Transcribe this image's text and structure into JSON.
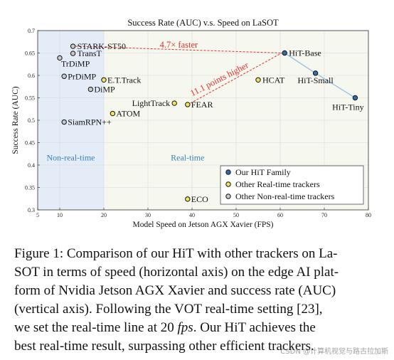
{
  "chart_data": {
    "type": "scatter",
    "title": "Success Rate (AUC) v.s. Speed on LaSOT",
    "xlabel": "Model Speed on Jetson AGX Xavier (FPS)",
    "ylabel": "Success Rate (AUC)",
    "xlim": [
      5,
      80
    ],
    "ylim": [
      0.3,
      0.7
    ],
    "xticks": [
      5,
      10,
      20,
      30,
      40,
      50,
      60,
      70,
      80
    ],
    "yticks": [
      0.3,
      0.35,
      0.4,
      0.45,
      0.5,
      0.55,
      0.6,
      0.65,
      0.7
    ],
    "grid": true,
    "legend_position": "bottom-right",
    "regions": [
      {
        "label": "Non-real-time",
        "x_range": [
          5,
          20
        ],
        "color": "#e3ecf7"
      },
      {
        "label": "Real-time",
        "x_range": [
          20,
          80
        ],
        "color": "#f6f8ef"
      }
    ],
    "series": [
      {
        "name": "Our HiT Family",
        "color": "#2f6fa8",
        "points": [
          {
            "label": "HiT-Base",
            "x": 61,
            "y": 0.65
          },
          {
            "label": "HiT-Small",
            "x": 68,
            "y": 0.605
          },
          {
            "label": "HiT-Tiny",
            "x": 77,
            "y": 0.55
          }
        ]
      },
      {
        "name": "Other Real-time trackers",
        "color": "#f2e45a",
        "points": [
          {
            "label": "HCAT",
            "x": 55,
            "y": 0.59
          },
          {
            "label": "LightTrack",
            "x": 36,
            "y": 0.538
          },
          {
            "label": "FEAR",
            "x": 39,
            "y": 0.535
          },
          {
            "label": "ATOM",
            "x": 22,
            "y": 0.515
          },
          {
            "label": "ECO",
            "x": 39,
            "y": 0.324
          },
          {
            "label": "E.T.Track",
            "x": 20,
            "y": 0.59
          }
        ]
      },
      {
        "name": "Other Non-real-time trackers",
        "color": "#c9c9c9",
        "points": [
          {
            "label": "STARK-ST50",
            "x": 13,
            "y": 0.665
          },
          {
            "label": "TransT",
            "x": 13,
            "y": 0.649
          },
          {
            "label": "TrDiMP",
            "x": 10,
            "y": 0.639
          },
          {
            "label": "PrDiMP",
            "x": 11,
            "y": 0.598
          },
          {
            "label": "DiMP",
            "x": 17,
            "y": 0.569
          },
          {
            "label": "SiamRPN++",
            "x": 11,
            "y": 0.496
          }
        ]
      }
    ],
    "annotations": [
      {
        "text": "4.7× faster",
        "from": {
          "x": 13,
          "y": 0.665
        },
        "to": {
          "x": 61,
          "y": 0.65
        },
        "color": "#e0302d"
      },
      {
        "text": "11.1 points higher",
        "from": {
          "x": 39,
          "y": 0.538
        },
        "to": {
          "x": 61,
          "y": 0.65
        },
        "color": "#e0302d"
      }
    ]
  },
  "caption": {
    "line1": "Figure 1: Comparison of our HiT with other trackers on La-",
    "line2": "SOT in terms of speed (horizontal axis) on the edge AI plat-",
    "line3": "form of Nvidia Jetson AGX Xavier and success rate (AUC)",
    "line4": "(vertical axis).  Following the VOT real-time setting [23],",
    "line5_a": "we set the real-time line at 20 ",
    "line5_fps": "fps",
    "line5_b": ".  Our HiT achieves the",
    "line6": "best real-time result, surpassing other efficient trackers."
  },
  "watermark": "CSDN @计算机视觉与路古拉加斯"
}
